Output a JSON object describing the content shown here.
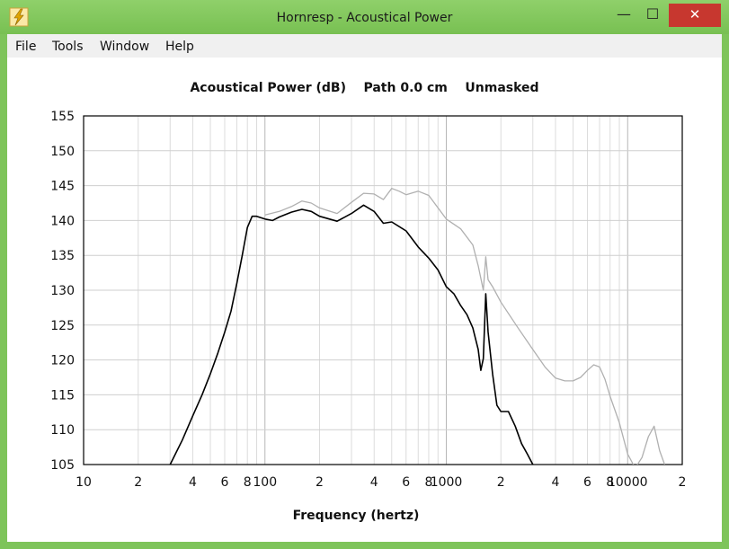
{
  "window": {
    "title": "Hornresp - Acoustical Power",
    "icon": "lightning-bolt-icon",
    "accent_color": "#7ec45a",
    "close_color": "#c7372f"
  },
  "menu": [
    "File",
    "Tools",
    "Window",
    "Help"
  ],
  "chart_data": {
    "type": "line",
    "title": "Acoustical Power (dB)    Path 0.0 cm    Unmasked",
    "xlabel": "Frequency (hertz)",
    "ylabel": "",
    "x_scale": "log",
    "xlim": [
      10,
      20000
    ],
    "ylim": [
      105,
      155
    ],
    "grid": true,
    "x_ticks": [
      {
        "v": 10,
        "label": "10"
      },
      {
        "v": 20,
        "label": "2"
      },
      {
        "v": 40,
        "label": "4"
      },
      {
        "v": 60,
        "label": "6"
      },
      {
        "v": 80,
        "label": "8"
      },
      {
        "v": 100,
        "label": "100"
      },
      {
        "v": 200,
        "label": "2"
      },
      {
        "v": 400,
        "label": "4"
      },
      {
        "v": 600,
        "label": "6"
      },
      {
        "v": 800,
        "label": "8"
      },
      {
        "v": 1000,
        "label": "1000"
      },
      {
        "v": 2000,
        "label": "2"
      },
      {
        "v": 4000,
        "label": "4"
      },
      {
        "v": 6000,
        "label": "6"
      },
      {
        "v": 8000,
        "label": "8"
      },
      {
        "v": 10000,
        "label": "10000"
      },
      {
        "v": 20000,
        "label": "2"
      }
    ],
    "y_ticks": [
      105,
      110,
      115,
      120,
      125,
      130,
      135,
      140,
      145,
      150,
      155
    ],
    "series": [
      {
        "color": "#000000",
        "x": [
          30,
          35,
          40,
          45,
          50,
          55,
          60,
          65,
          70,
          75,
          80,
          85,
          90,
          100,
          110,
          120,
          140,
          160,
          180,
          200,
          250,
          300,
          350,
          400,
          450,
          500,
          600,
          700,
          800,
          900,
          1000,
          1100,
          1200,
          1300,
          1400,
          1500,
          1550,
          1600,
          1650,
          1700,
          1800,
          1900,
          2000,
          2200,
          2400,
          2600,
          2800,
          3000
        ],
        "values": [
          105,
          108.5,
          112,
          115,
          118,
          121,
          124,
          127,
          131,
          135,
          139,
          140.6,
          140.6,
          140.2,
          140.0,
          140.5,
          141.2,
          141.6,
          141.3,
          140.6,
          139.9,
          141.0,
          142.2,
          141.3,
          139.6,
          139.8,
          138.5,
          136.2,
          134.6,
          132.9,
          130.5,
          129.5,
          127.8,
          126.5,
          124.6,
          121.5,
          118.5,
          120.2,
          129.5,
          124.0,
          118.0,
          113.5,
          112.6,
          112.6,
          110.5,
          108.0,
          106.5,
          105.0
        ]
      },
      {
        "color": "#b0b0b0",
        "x": [
          100,
          120,
          140,
          160,
          180,
          200,
          250,
          300,
          350,
          400,
          450,
          500,
          550,
          600,
          700,
          800,
          900,
          1000,
          1200,
          1400,
          1500,
          1600,
          1650,
          1700,
          1800,
          2000,
          2500,
          3000,
          3500,
          4000,
          4500,
          5000,
          5500,
          6000,
          6500,
          7000,
          7500,
          8000,
          9000,
          10000,
          11000,
          12000,
          13000,
          14000,
          15000,
          16000
        ],
        "values": [
          140.8,
          141.3,
          142.0,
          142.8,
          142.5,
          141.8,
          141.0,
          142.6,
          143.9,
          143.8,
          143.0,
          144.6,
          144.2,
          143.7,
          144.2,
          143.6,
          141.8,
          140.2,
          138.8,
          136.5,
          133.5,
          130.0,
          134.8,
          131.5,
          130.5,
          128.3,
          124.5,
          121.5,
          119.0,
          117.4,
          117.0,
          117.0,
          117.5,
          118.5,
          119.3,
          119.0,
          117.2,
          114.8,
          111.0,
          106.5,
          104.5,
          106.0,
          109.0,
          110.5,
          107.0,
          105.0
        ]
      }
    ]
  }
}
